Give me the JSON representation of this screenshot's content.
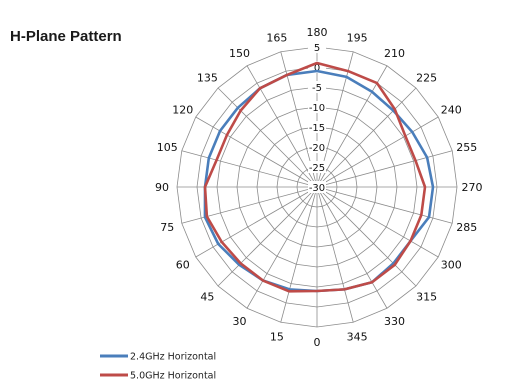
{
  "chart_data": {
    "type": "polar-line",
    "title": "H-Plane Pattern",
    "angle_labels": [
      "0",
      "15",
      "30",
      "45",
      "60",
      "75",
      "90",
      "105",
      "120",
      "135",
      "150",
      "165",
      "180",
      "195",
      "210",
      "225",
      "240",
      "255",
      "270",
      "285",
      "300",
      "315",
      "330",
      "345"
    ],
    "angles": [
      0,
      15,
      30,
      45,
      60,
      75,
      90,
      105,
      120,
      135,
      150,
      165,
      180,
      195,
      210,
      225,
      240,
      255,
      270,
      285,
      300,
      315,
      330,
      345
    ],
    "radial_ticks": [
      5,
      0,
      -5,
      -10,
      -15,
      -20,
      -25,
      -30
    ],
    "radial_tick_labels": [
      "5",
      "0",
      "-5",
      "-10",
      "-15",
      "-20",
      "-25",
      "-30"
    ],
    "rlim": [
      -30,
      5
    ],
    "grid": true,
    "legend_position": "bottom-left",
    "series": [
      {
        "name": "2.4GHz Horizontal",
        "color": "#4a7ebb",
        "values": [
          -4,
          -3.5,
          -3,
          -2.5,
          -1.5,
          -1,
          -2,
          -2,
          -2,
          -2,
          -1.5,
          -1,
          -1,
          -1.5,
          -2.5,
          -3,
          -2.5,
          -1.5,
          -1,
          -1,
          -3,
          -3,
          -2.5,
          -3.5
        ]
      },
      {
        "name": "5.0GHz Horizontal",
        "color": "#be4b48",
        "values": [
          -4,
          -3,
          -3,
          -3,
          -2.5,
          -1.5,
          -2,
          -4,
          -4,
          -3,
          -1.5,
          -1,
          1,
          0,
          0,
          -2.5,
          -4.5,
          -4.5,
          -3,
          -3,
          -3,
          -2.5,
          -2.5,
          -3.5
        ]
      }
    ]
  }
}
